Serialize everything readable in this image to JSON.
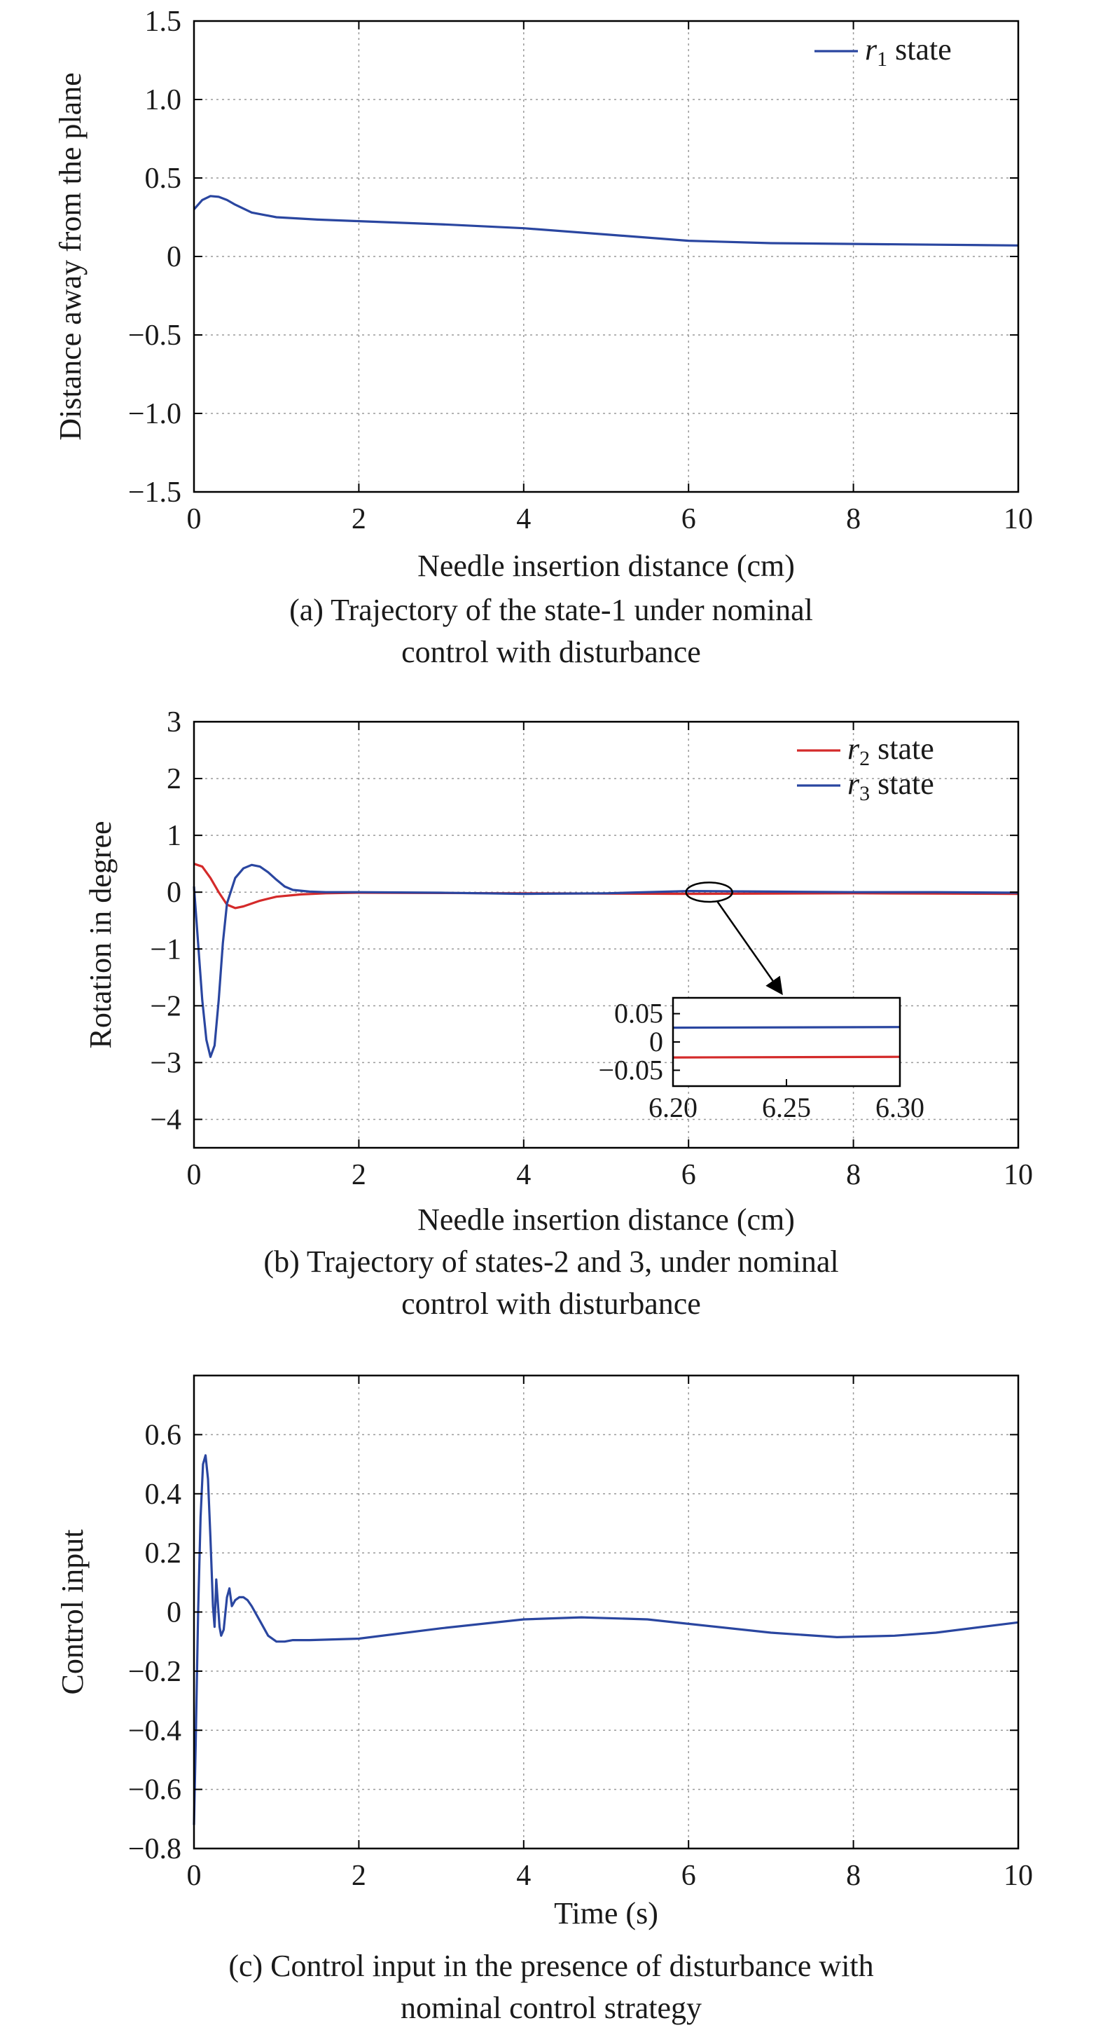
{
  "chart_data": [
    {
      "type": "line",
      "id": "a",
      "xlabel": "Needle insertion distance (cm)",
      "ylabel": "Distance away from the plane",
      "xlim": [
        0,
        10
      ],
      "ylim": [
        -1.5,
        1.5
      ],
      "xticks": [
        0,
        2,
        4,
        6,
        8,
        10
      ],
      "xtick_labels": [
        "0",
        "2",
        "4",
        "6",
        "8",
        "10"
      ],
      "yticks": [
        1.5,
        1.0,
        0.5,
        0,
        -0.5,
        -1.0,
        -1.5
      ],
      "ytick_labels": [
        "1.5",
        "1.0",
        "0.5",
        "0",
        "−0.5",
        "−1.0",
        "−1.5"
      ],
      "grid": true,
      "legend_position": "top-right",
      "caption_lines": [
        "(a) Trajectory of the state-1 under nominal",
        "control with disturbance"
      ],
      "series": [
        {
          "name_symbol": "r",
          "name_sub": "1",
          "name_rest": " state",
          "color": "#2a46a0",
          "x": [
            0,
            0.1,
            0.2,
            0.3,
            0.4,
            0.5,
            0.7,
            1.0,
            1.5,
            2,
            3,
            4,
            5,
            6,
            7,
            8,
            9,
            10
          ],
          "y": [
            0.3,
            0.36,
            0.385,
            0.38,
            0.36,
            0.33,
            0.28,
            0.25,
            0.235,
            0.225,
            0.205,
            0.18,
            0.14,
            0.1,
            0.085,
            0.08,
            0.075,
            0.07
          ]
        }
      ]
    },
    {
      "type": "line",
      "id": "b",
      "xlabel": "Needle insertion distance (cm)",
      "ylabel": "Rotation in degree",
      "xlim": [
        0,
        10
      ],
      "ylim": [
        -4.5,
        3
      ],
      "xticks": [
        0,
        2,
        4,
        6,
        8,
        10
      ],
      "xtick_labels": [
        "0",
        "2",
        "4",
        "6",
        "8",
        "10"
      ],
      "yticks": [
        3,
        2,
        1,
        0,
        -1,
        -2,
        -3,
        -4
      ],
      "ytick_labels": [
        "3",
        "2",
        "1",
        "0",
        "−1",
        "−2",
        "−3",
        "−4"
      ],
      "grid": true,
      "legend_position": "top-right",
      "caption_lines": [
        "(b) Trajectory of states-2 and 3, under nominal",
        "control with disturbance"
      ],
      "series": [
        {
          "name_symbol": "r",
          "name_sub": "2",
          "name_rest": " state",
          "color": "#d42a2a",
          "x": [
            0,
            0.1,
            0.2,
            0.3,
            0.4,
            0.5,
            0.6,
            0.8,
            1.0,
            1.3,
            1.6,
            2,
            4,
            6,
            8,
            10
          ],
          "y": [
            0.5,
            0.45,
            0.25,
            0.0,
            -0.22,
            -0.28,
            -0.25,
            -0.15,
            -0.08,
            -0.04,
            -0.02,
            -0.01,
            -0.02,
            -0.03,
            -0.02,
            -0.03
          ]
        },
        {
          "name_symbol": "r",
          "name_sub": "3",
          "name_rest": " state",
          "color": "#2a46a0",
          "x": [
            0,
            0.05,
            0.1,
            0.15,
            0.2,
            0.25,
            0.3,
            0.35,
            0.4,
            0.5,
            0.6,
            0.7,
            0.8,
            0.9,
            1.0,
            1.1,
            1.2,
            1.4,
            1.6,
            2,
            3,
            4,
            5,
            6,
            7,
            8,
            9,
            10
          ],
          "y": [
            0.1,
            -0.9,
            -1.9,
            -2.6,
            -2.9,
            -2.7,
            -1.9,
            -0.9,
            -0.2,
            0.25,
            0.42,
            0.48,
            0.45,
            0.35,
            0.22,
            0.1,
            0.04,
            0.01,
            0.0,
            0.0,
            -0.01,
            -0.03,
            -0.02,
            0.02,
            0.01,
            0.0,
            0.0,
            -0.01
          ]
        }
      ],
      "highlight": {
        "x": 6.25,
        "y": 0.0,
        "rx": 0.28,
        "ry": 0.17
      },
      "inset": {
        "xlim": [
          6.2,
          6.3
        ],
        "ylim": [
          -0.078,
          0.078
        ],
        "xticks": [
          6.2,
          6.25,
          6.3
        ],
        "xtick_labels": [
          "6.20",
          "6.25",
          "6.30"
        ],
        "yticks": [
          0.05,
          0,
          -0.05
        ],
        "ytick_labels": [
          "0.05",
          "0",
          "−0.05"
        ],
        "series": [
          {
            "color": "#2a46a0",
            "x": [
              6.2,
              6.3
            ],
            "y": [
              0.0252,
              0.0264
            ]
          },
          {
            "color": "#d42a2a",
            "x": [
              6.2,
              6.3
            ],
            "y": [
              -0.0274,
              -0.0262
            ]
          }
        ]
      }
    },
    {
      "type": "line",
      "id": "c",
      "xlabel": "Time (s)",
      "ylabel": "Control input",
      "xlim": [
        0,
        10
      ],
      "ylim": [
        -0.8,
        0.8
      ],
      "xticks": [
        0,
        2,
        4,
        6,
        8,
        10
      ],
      "xtick_labels": [
        "0",
        "2",
        "4",
        "6",
        "8",
        "10"
      ],
      "yticks": [
        0.6,
        0.4,
        0.2,
        0,
        -0.2,
        -0.4,
        -0.6,
        -0.8
      ],
      "ytick_labels": [
        "0.6",
        "0.4",
        "0.2",
        "0",
        "−0.2",
        "−0.4",
        "−0.6",
        "−0.8"
      ],
      "grid": true,
      "caption_lines": [
        "(c) Control input in the presence of disturbance with",
        "nominal control strategy"
      ],
      "series": [
        {
          "color": "#2a46a0",
          "x": [
            0,
            0.02,
            0.05,
            0.08,
            0.11,
            0.14,
            0.17,
            0.2,
            0.23,
            0.25,
            0.27,
            0.29,
            0.31,
            0.33,
            0.36,
            0.4,
            0.43,
            0.46,
            0.48,
            0.5,
            0.55,
            0.6,
            0.65,
            0.7,
            0.8,
            0.9,
            1.0,
            1.1,
            1.2,
            1.4,
            2.0,
            3.0,
            4.0,
            4.7,
            5.5,
            6.0,
            7.0,
            7.8,
            8.5,
            9.0,
            10
          ],
          "y": [
            -0.72,
            -0.45,
            0.0,
            0.32,
            0.5,
            0.53,
            0.45,
            0.25,
            0.02,
            -0.05,
            0.11,
            0.03,
            -0.05,
            -0.08,
            -0.06,
            0.05,
            0.08,
            0.02,
            0.03,
            0.04,
            0.05,
            0.05,
            0.04,
            0.02,
            -0.03,
            -0.08,
            -0.1,
            -0.1,
            -0.095,
            -0.095,
            -0.09,
            -0.055,
            -0.025,
            -0.018,
            -0.025,
            -0.04,
            -0.07,
            -0.085,
            -0.08,
            -0.07,
            -0.035
          ]
        }
      ]
    }
  ]
}
